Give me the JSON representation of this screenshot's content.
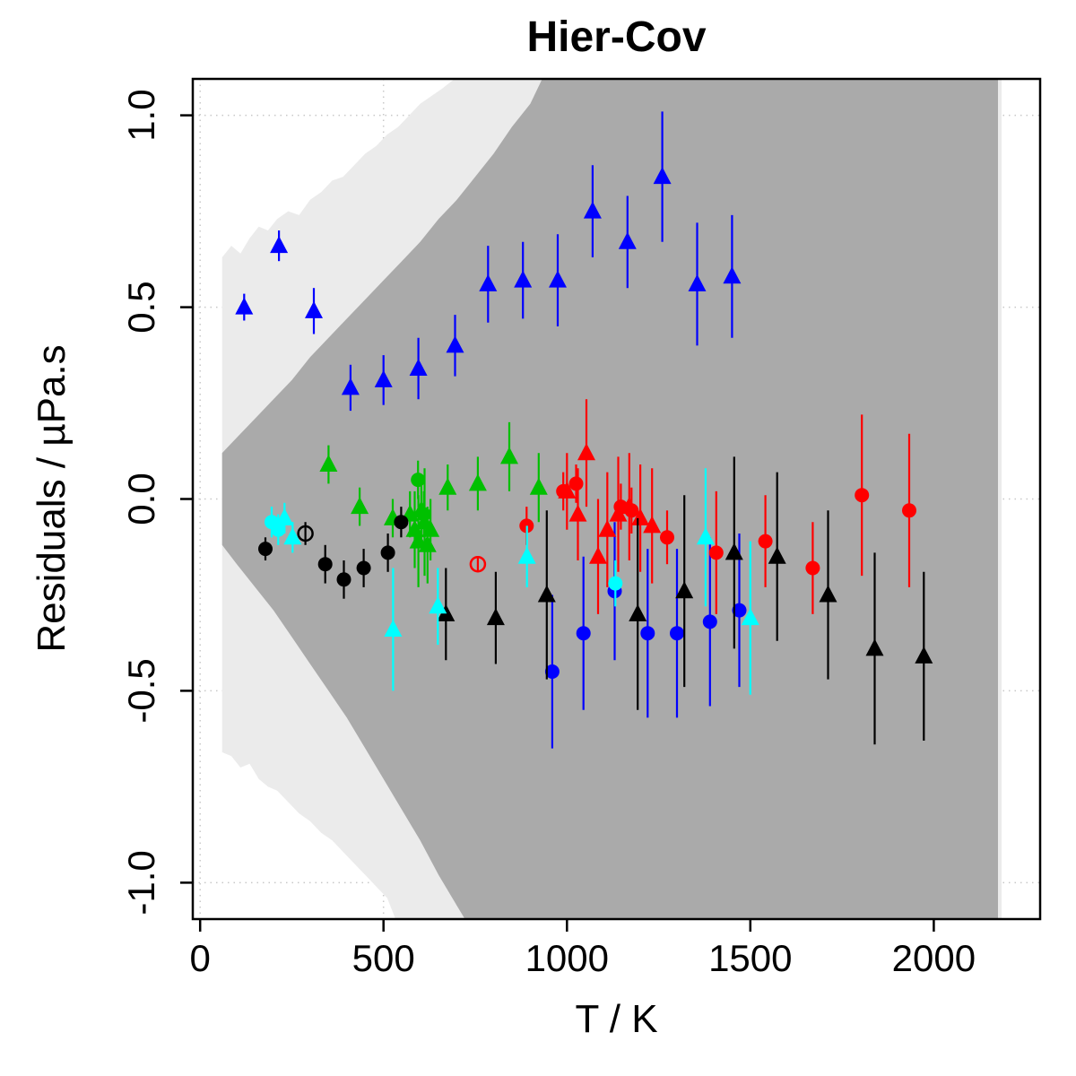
{
  "chart_data": {
    "type": "scatter",
    "title": "Hier-Cov",
    "xlabel": "T / K",
    "ylabel": "Residuals / µPa.s",
    "xlim": [
      -20,
      2290
    ],
    "ylim": [
      -1.095,
      1.095
    ],
    "x_ticks": [
      0,
      500,
      1000,
      1500,
      2000
    ],
    "x_tick_labels": [
      "0",
      "500",
      "1000",
      "1500",
      "2000"
    ],
    "y_ticks": [
      -1.0,
      -0.5,
      0.0,
      0.5,
      1.0
    ],
    "y_tick_labels": [
      "-1.0",
      "-0.5",
      "0.0",
      "0.5",
      "1.0"
    ],
    "grid": "dotted",
    "colors": {
      "band_outer": "#ebebeb",
      "band_inner": "#aaaaaa",
      "grid": "#c8c8c8",
      "axis": "#000000",
      "blue": "#0000ff",
      "green": "#00c000",
      "red": "#ff0000",
      "black": "#000000",
      "cyan": "#00ffff"
    },
    "bands": [
      {
        "name": "outer-uncertainty-band",
        "color": "#ebebeb",
        "upper": [
          [
            60,
            0.63
          ],
          [
            85,
            0.66
          ],
          [
            110,
            0.64
          ],
          [
            135,
            0.68
          ],
          [
            160,
            0.71
          ],
          [
            185,
            0.7
          ],
          [
            210,
            0.73
          ],
          [
            240,
            0.75
          ],
          [
            270,
            0.74
          ],
          [
            300,
            0.78
          ],
          [
            330,
            0.8
          ],
          [
            360,
            0.83
          ],
          [
            390,
            0.84
          ],
          [
            420,
            0.87
          ],
          [
            450,
            0.9
          ],
          [
            480,
            0.92
          ],
          [
            510,
            0.95
          ],
          [
            540,
            0.97
          ],
          [
            570,
            1.0
          ],
          [
            600,
            1.03
          ],
          [
            630,
            1.05
          ],
          [
            660,
            1.07
          ],
          [
            700,
            1.1
          ],
          [
            2185,
            1.1
          ]
        ],
        "lower": [
          [
            60,
            -0.66
          ],
          [
            85,
            -0.67
          ],
          [
            110,
            -0.7
          ],
          [
            135,
            -0.69
          ],
          [
            160,
            -0.73
          ],
          [
            185,
            -0.75
          ],
          [
            210,
            -0.76
          ],
          [
            240,
            -0.79
          ],
          [
            270,
            -0.82
          ],
          [
            300,
            -0.84
          ],
          [
            330,
            -0.87
          ],
          [
            360,
            -0.89
          ],
          [
            390,
            -0.92
          ],
          [
            420,
            -0.95
          ],
          [
            450,
            -0.98
          ],
          [
            480,
            -1.01
          ],
          [
            510,
            -1.04
          ],
          [
            535,
            -1.1
          ],
          [
            2185,
            -1.1
          ]
        ]
      },
      {
        "name": "inner-uncertainty-band",
        "color": "#aaaaaa",
        "upper": [
          [
            60,
            0.12
          ],
          [
            100,
            0.16
          ],
          [
            150,
            0.21
          ],
          [
            200,
            0.26
          ],
          [
            250,
            0.31
          ],
          [
            300,
            0.37
          ],
          [
            350,
            0.42
          ],
          [
            400,
            0.47
          ],
          [
            450,
            0.52
          ],
          [
            500,
            0.57
          ],
          [
            550,
            0.62
          ],
          [
            600,
            0.67
          ],
          [
            650,
            0.73
          ],
          [
            700,
            0.78
          ],
          [
            750,
            0.84
          ],
          [
            800,
            0.9
          ],
          [
            850,
            0.97
          ],
          [
            900,
            1.03
          ],
          [
            935,
            1.1
          ],
          [
            2175,
            1.1
          ]
        ],
        "lower": [
          [
            60,
            -0.12
          ],
          [
            100,
            -0.17
          ],
          [
            150,
            -0.23
          ],
          [
            200,
            -0.29
          ],
          [
            250,
            -0.36
          ],
          [
            300,
            -0.43
          ],
          [
            350,
            -0.5
          ],
          [
            400,
            -0.57
          ],
          [
            450,
            -0.65
          ],
          [
            500,
            -0.73
          ],
          [
            550,
            -0.81
          ],
          [
            600,
            -0.89
          ],
          [
            650,
            -0.98
          ],
          [
            700,
            -1.06
          ],
          [
            725,
            -1.1
          ],
          [
            2175,
            -1.1
          ]
        ]
      }
    ],
    "series": [
      {
        "name": "blue-triangle-series",
        "color": "#0000ff",
        "symbol": "triangle",
        "points": [
          [
            120,
            0.5,
            0.035
          ],
          [
            215,
            0.66,
            0.04
          ],
          [
            310,
            0.49,
            0.06
          ],
          [
            410,
            0.29,
            0.06
          ],
          [
            500,
            0.31,
            0.065
          ],
          [
            595,
            0.34,
            0.08
          ],
          [
            695,
            0.4,
            0.08
          ],
          [
            785,
            0.56,
            0.1
          ],
          [
            880,
            0.57,
            0.1
          ],
          [
            975,
            0.57,
            0.12
          ],
          [
            1070,
            0.75,
            0.12
          ],
          [
            1165,
            0.67,
            0.12
          ],
          [
            1260,
            0.84,
            0.17
          ],
          [
            1355,
            0.56,
            0.16
          ],
          [
            1450,
            0.58,
            0.16
          ]
        ]
      },
      {
        "name": "blue-circle-series",
        "color": "#0000ff",
        "symbol": "circle",
        "points": [
          [
            960,
            -0.45,
            0.2
          ],
          [
            1045,
            -0.35,
            0.2
          ],
          [
            1130,
            -0.24,
            0.18
          ],
          [
            1220,
            -0.35,
            0.22
          ],
          [
            1300,
            -0.35,
            0.22
          ],
          [
            1390,
            -0.32,
            0.22
          ],
          [
            1470,
            -0.29,
            0.2
          ]
        ]
      },
      {
        "name": "green-triangle-series",
        "color": "#00c000",
        "symbol": "triangle",
        "points": [
          [
            350,
            0.09,
            0.05
          ],
          [
            435,
            -0.02,
            0.05
          ],
          [
            525,
            -0.05,
            0.05
          ],
          [
            572,
            -0.04,
            0.06
          ],
          [
            585,
            -0.08,
            0.1
          ],
          [
            595,
            -0.11,
            0.12
          ],
          [
            603,
            -0.03,
            0.08
          ],
          [
            612,
            -0.06,
            0.14
          ],
          [
            620,
            -0.12,
            0.1
          ],
          [
            628,
            -0.08,
            0.08
          ],
          [
            675,
            0.03,
            0.06
          ],
          [
            757,
            0.04,
            0.07
          ],
          [
            843,
            0.11,
            0.09
          ],
          [
            923,
            0.03,
            0.09
          ]
        ]
      },
      {
        "name": "green-circle-series",
        "color": "#00c000",
        "symbol": "circle",
        "points": [
          [
            594,
            0.05,
            0.05
          ],
          [
            610,
            -0.04,
            0.06
          ]
        ]
      },
      {
        "name": "red-circle-series",
        "color": "#ff0000",
        "symbol": "circle",
        "points": [
          [
            890,
            -0.07,
            0.05
          ],
          [
            990,
            0.02,
            0.05
          ],
          [
            1025,
            0.04,
            0.05
          ],
          [
            1147,
            -0.02,
            0.06
          ],
          [
            1176,
            -0.03,
            0.06
          ],
          [
            1273,
            -0.1,
            0.07
          ],
          [
            1407,
            -0.14,
            0.16
          ],
          [
            1541,
            -0.11,
            0.12
          ],
          [
            1670,
            -0.18,
            0.12
          ],
          [
            1804,
            0.01,
            0.21
          ],
          [
            1933,
            -0.03,
            0.2
          ]
        ]
      },
      {
        "name": "red-open-circle-series",
        "color": "#ff0000",
        "symbol": "circle-open",
        "points": [
          [
            757,
            -0.17,
            0.02
          ]
        ]
      },
      {
        "name": "red-triangle-series",
        "color": "#ff0000",
        "symbol": "triangle",
        "points": [
          [
            1000,
            0.02,
            0.1
          ],
          [
            1030,
            -0.04,
            0.12
          ],
          [
            1053,
            0.12,
            0.14
          ],
          [
            1085,
            -0.15,
            0.15
          ],
          [
            1110,
            -0.08,
            0.15
          ],
          [
            1140,
            -0.04,
            0.15
          ],
          [
            1170,
            -0.02,
            0.14
          ],
          [
            1200,
            -0.05,
            0.14
          ],
          [
            1232,
            -0.07,
            0.15
          ]
        ]
      },
      {
        "name": "black-circle-series",
        "color": "#000000",
        "symbol": "circle",
        "points": [
          [
            178,
            -0.13,
            0.03
          ],
          [
            341,
            -0.17,
            0.05
          ],
          [
            392,
            -0.21,
            0.05
          ],
          [
            446,
            -0.18,
            0.05
          ],
          [
            512,
            -0.14,
            0.05
          ],
          [
            548,
            -0.06,
            0.04
          ]
        ]
      },
      {
        "name": "black-open-circle-series",
        "color": "#000000",
        "symbol": "circle-open",
        "points": [
          [
            287,
            -0.09,
            0.03
          ]
        ]
      },
      {
        "name": "black-triangle-series",
        "color": "#000000",
        "symbol": "triangle",
        "points": [
          [
            670,
            -0.3,
            0.12
          ],
          [
            806,
            -0.31,
            0.12
          ],
          [
            945,
            -0.25,
            0.22
          ],
          [
            1193,
            -0.3,
            0.25
          ],
          [
            1320,
            -0.24,
            0.25
          ],
          [
            1456,
            -0.14,
            0.25
          ],
          [
            1573,
            -0.15,
            0.22
          ],
          [
            1712,
            -0.25,
            0.22
          ],
          [
            1839,
            -0.39,
            0.25
          ],
          [
            1973,
            -0.41,
            0.22
          ]
        ]
      },
      {
        "name": "cyan-circle-series",
        "color": "#00ffff",
        "symbol": "circle",
        "points": [
          [
            195,
            -0.06,
            0.04
          ],
          [
            213,
            -0.08,
            0.04
          ],
          [
            1132,
            -0.22,
            0.06
          ]
        ]
      },
      {
        "name": "cyan-triangle-series",
        "color": "#00ffff",
        "symbol": "triangle",
        "points": [
          [
            230,
            -0.05,
            0.04
          ],
          [
            252,
            -0.1,
            0.04
          ],
          [
            526,
            -0.34,
            0.16
          ],
          [
            648,
            -0.28,
            0.1
          ],
          [
            891,
            -0.15,
            0.08
          ],
          [
            1378,
            -0.1,
            0.18
          ],
          [
            1500,
            -0.31,
            0.2
          ]
        ]
      }
    ]
  }
}
